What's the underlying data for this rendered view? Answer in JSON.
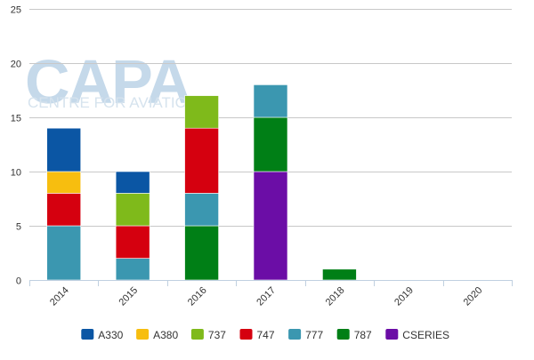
{
  "watermark": {
    "logo_text": "CAPA",
    "tagline": "CENTRE FOR AVIATION"
  },
  "chart_data": {
    "type": "bar",
    "stacked": true,
    "categories": [
      "2014",
      "2015",
      "2016",
      "2017",
      "2018",
      "2019",
      "2020"
    ],
    "series": [
      {
        "name": "A330",
        "color": "#0b56a4",
        "values": [
          4,
          2,
          0,
          0,
          0,
          0,
          0
        ]
      },
      {
        "name": "A380",
        "color": "#f7be0f",
        "values": [
          2,
          0,
          0,
          0,
          0,
          0,
          0
        ]
      },
      {
        "name": "737",
        "color": "#7fba1b",
        "values": [
          0,
          3,
          3,
          0,
          0,
          0,
          0
        ]
      },
      {
        "name": "747",
        "color": "#d5000f",
        "values": [
          3,
          3,
          6,
          0,
          0,
          0,
          0
        ]
      },
      {
        "name": "777",
        "color": "#3b97b0",
        "values": [
          5,
          2,
          3,
          3,
          0,
          0,
          0
        ]
      },
      {
        "name": "787",
        "color": "#007f16",
        "values": [
          0,
          0,
          5,
          5,
          1,
          0,
          0
        ]
      },
      {
        "name": "CSERIES",
        "color": "#6b0da6",
        "values": [
          0,
          0,
          0,
          10,
          0,
          0,
          0
        ]
      }
    ],
    "stack_order_bottom_to_top": [
      "CSERIES",
      "787",
      "777",
      "747",
      "737",
      "A380",
      "A330"
    ],
    "ylim": [
      0,
      25
    ],
    "yticks": [
      0,
      5,
      10,
      15,
      20,
      25
    ],
    "grid": true,
    "legend_position": "bottom",
    "title": "",
    "xlabel": "",
    "ylabel": ""
  }
}
